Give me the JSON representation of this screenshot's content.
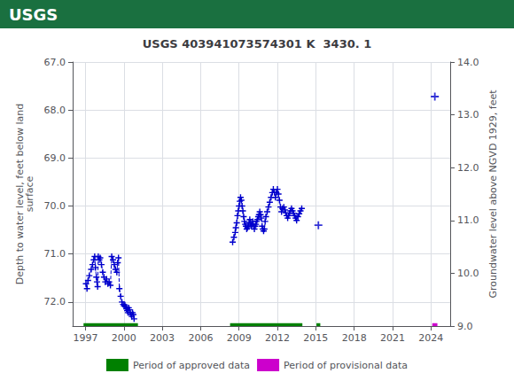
{
  "chart_data": {
    "type": "line",
    "title": "USGS 403941073574301 K  3430. 1",
    "annotations": [
      {
        "text": "USGS",
        "color": "#1a7040"
      }
    ],
    "ylabel": "Depth to water level, feet below land\nsurface",
    "y2label": "Groundwater level above NGVD 1929, feet",
    "xlim": [
      1996.0,
      2025.5
    ],
    "xticks": [
      1997,
      2000,
      2003,
      2006,
      2009,
      2012,
      2015,
      2018,
      2021,
      2024
    ],
    "ylim": [
      72.5,
      67.0
    ],
    "yticks": [
      {
        "value": 67.0,
        "label": "67.0"
      },
      {
        "value": 68.0,
        "label": "68.0"
      },
      {
        "value": 69.0,
        "label": "69.0"
      },
      {
        "value": 70.0,
        "label": "70.0"
      },
      {
        "value": 71.0,
        "label": "71.0"
      },
      {
        "value": 72.0,
        "label": "72.0"
      }
    ],
    "y2lim": [
      9.0,
      14.0
    ],
    "y2ticks": [
      {
        "value": 9.0,
        "label": "9.0"
      },
      {
        "value": 10.0,
        "label": "10.0"
      },
      {
        "value": 11.0,
        "label": "11.0"
      },
      {
        "value": 12.0,
        "label": "12.0"
      },
      {
        "value": 13.0,
        "label": "13.0"
      },
      {
        "value": 14.0,
        "label": "14.0"
      }
    ],
    "grid": true,
    "legend": "bottom",
    "series": [
      {
        "type": "line",
        "color": "#0000cc",
        "marker": "plus",
        "line_style": "dashed",
        "x": [
          1997.04,
          1997.12,
          1997.2,
          1997.3,
          1997.45,
          1997.55,
          1997.65,
          1997.72,
          1997.78,
          1997.85,
          1997.9,
          1997.95,
          1998.0,
          1998.08,
          1998.15,
          1998.25,
          1998.35,
          1998.45,
          1998.55,
          1998.65,
          1998.75,
          1998.85,
          1998.95,
          1999.05,
          1999.15,
          1999.25,
          1999.35,
          1999.45,
          1999.52,
          1999.58,
          1999.65,
          1999.75,
          1999.85,
          1999.95,
          2000.02,
          2000.08,
          2000.14,
          2000.2,
          2000.26,
          2000.32,
          2000.38,
          2000.44,
          2000.5,
          2000.56,
          2000.62,
          2000.68,
          2000.74,
          2000.8
        ],
        "values": [
          71.62,
          71.72,
          71.55,
          71.45,
          71.32,
          71.22,
          71.12,
          71.05,
          71.28,
          71.48,
          71.58,
          71.68,
          71.05,
          71.12,
          71.08,
          71.22,
          71.38,
          71.48,
          71.58,
          71.52,
          71.62,
          71.58,
          71.65,
          71.05,
          71.12,
          71.22,
          71.32,
          71.38,
          71.18,
          71.08,
          71.72,
          71.88,
          72.0,
          72.05,
          72.08,
          72.06,
          72.1,
          72.14,
          72.18,
          72.22,
          72.12,
          72.16,
          72.22,
          72.26,
          72.3,
          72.22,
          72.26,
          72.35
        ]
      },
      {
        "type": "line",
        "color": "#0000cc",
        "marker": "plus",
        "line_style": "dashed",
        "x": [
          2008.5,
          2008.6,
          2008.7,
          2008.75,
          2008.82,
          2008.88,
          2008.94,
          2009.0,
          2009.06,
          2009.12,
          2009.18,
          2009.24,
          2009.3,
          2009.36,
          2009.42,
          2009.48,
          2009.54,
          2009.6,
          2009.66,
          2009.72,
          2009.78,
          2009.84,
          2009.9,
          2009.96,
          2010.02,
          2010.08,
          2010.14,
          2010.2,
          2010.26,
          2010.32,
          2010.38,
          2010.44,
          2010.5,
          2010.56,
          2010.62,
          2010.68,
          2010.74,
          2010.8,
          2010.86,
          2010.92,
          2010.98,
          2011.04,
          2011.1,
          2011.2,
          2011.3,
          2011.4,
          2011.5,
          2011.6,
          2011.68,
          2011.76,
          2011.84,
          2011.92,
          2012.0,
          2012.08,
          2012.16,
          2012.24,
          2012.32,
          2012.4,
          2012.5,
          2012.58,
          2012.65,
          2012.72,
          2012.8,
          2012.88,
          2012.95,
          2013.02,
          2013.1,
          2013.18,
          2013.26,
          2013.34,
          2013.42,
          2013.5,
          2013.6,
          2013.7,
          2013.8,
          2013.9
        ],
        "values": [
          70.75,
          70.65,
          70.55,
          70.45,
          70.35,
          70.2,
          70.1,
          70.0,
          69.9,
          69.82,
          69.88,
          70.0,
          70.1,
          70.22,
          70.32,
          70.38,
          70.42,
          70.48,
          70.45,
          70.42,
          70.35,
          70.28,
          70.35,
          70.42,
          70.38,
          70.32,
          70.42,
          70.48,
          70.42,
          70.38,
          70.32,
          70.28,
          70.22,
          70.18,
          70.12,
          70.18,
          70.25,
          70.42,
          70.48,
          70.52,
          70.48,
          70.32,
          70.22,
          70.12,
          70.02,
          69.92,
          69.82,
          69.72,
          69.65,
          69.72,
          69.82,
          69.72,
          69.65,
          69.75,
          69.88,
          70.02,
          70.12,
          70.05,
          70.02,
          70.08,
          70.14,
          70.2,
          70.25,
          70.2,
          70.15,
          70.1,
          70.05,
          70.1,
          70.15,
          70.2,
          70.25,
          70.3,
          70.22,
          70.16,
          70.1,
          70.05
        ]
      },
      {
        "type": "scatter",
        "color": "#0000cc",
        "marker": "plus",
        "x": [
          2015.2,
          2024.3
        ],
        "values": [
          70.4,
          67.72
        ]
      },
      {
        "type": "band",
        "name": "Period of approved data",
        "color": "#008000",
        "ranges": [
          [
            1996.85,
            2001.1
          ],
          [
            2008.3,
            2013.95
          ],
          [
            2015.05,
            2015.35
          ]
        ],
        "y": 72.44,
        "height": 0.06
      },
      {
        "type": "band",
        "name": "Period of provisional data",
        "color": "#cc00cc",
        "ranges": [
          [
            2024.1,
            2024.5
          ]
        ],
        "y": 72.44,
        "height": 0.06
      }
    ]
  }
}
